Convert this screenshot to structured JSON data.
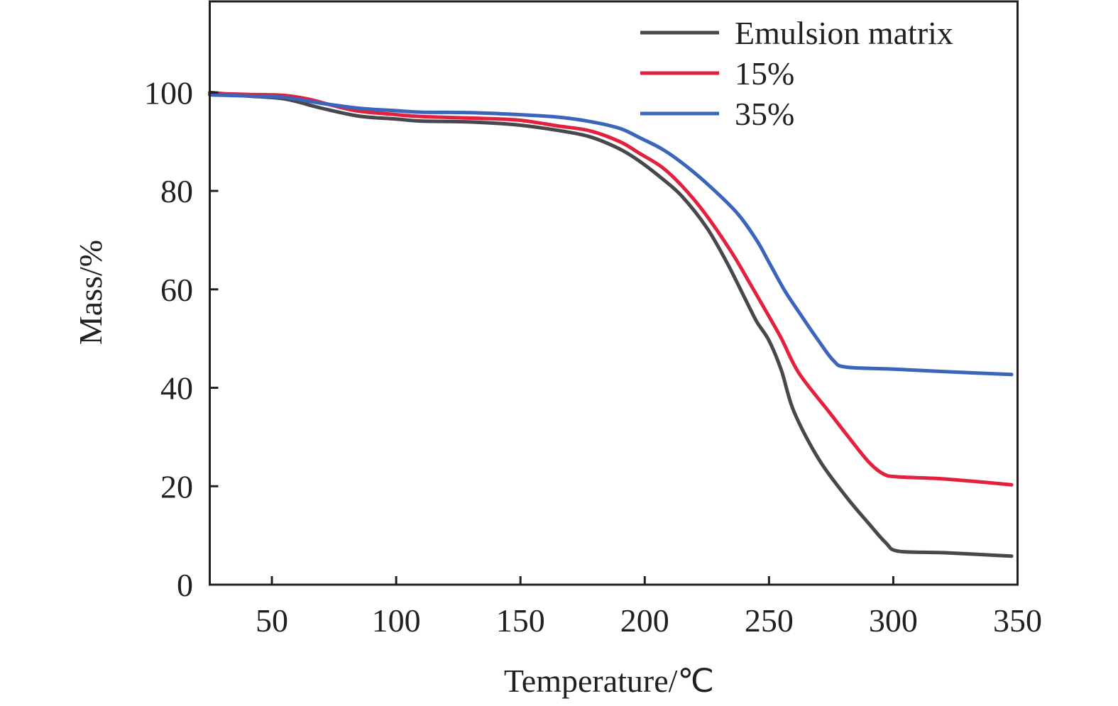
{
  "chart_data": {
    "type": "line",
    "title": "",
    "xlabel": "Temperature/℃",
    "ylabel": "Mass/%",
    "xlim": [
      25,
      350
    ],
    "ylim": [
      0,
      118.5
    ],
    "xticks": [
      50,
      100,
      150,
      200,
      250,
      300,
      350
    ],
    "yticks": [
      0,
      20,
      40,
      60,
      80,
      100
    ],
    "grid": false,
    "legend_position": "top-right",
    "series": [
      {
        "name": "Emulsion matrix",
        "color": "#47474d",
        "points": [
          [
            25,
            100
          ],
          [
            40,
            99.3
          ],
          [
            55,
            98.7
          ],
          [
            70,
            96.8
          ],
          [
            85,
            95.2
          ],
          [
            100,
            94.6
          ],
          [
            110,
            94.2
          ],
          [
            130,
            94.0
          ],
          [
            149,
            93.4
          ],
          [
            165,
            92.3
          ],
          [
            178,
            91.0
          ],
          [
            190,
            88.5
          ],
          [
            198,
            86.0
          ],
          [
            207,
            82.5
          ],
          [
            215,
            78.9
          ],
          [
            225,
            72.5
          ],
          [
            233,
            65.5
          ],
          [
            240,
            58.5
          ],
          [
            245,
            53.5
          ],
          [
            250,
            49.6
          ],
          [
            255,
            43.5
          ],
          [
            260,
            35.2
          ],
          [
            270,
            25.5
          ],
          [
            281,
            17.9
          ],
          [
            290,
            12.5
          ],
          [
            297,
            8.5
          ],
          [
            302,
            6.8
          ],
          [
            320,
            6.5
          ],
          [
            347.6,
            5.8
          ]
        ]
      },
      {
        "name": "15%",
        "color": "#e2213e",
        "points": [
          [
            25,
            99.8
          ],
          [
            40,
            99.6
          ],
          [
            55,
            99.4
          ],
          [
            65,
            98.6
          ],
          [
            75,
            97.3
          ],
          [
            85,
            96.2
          ],
          [
            100,
            95.5
          ],
          [
            110,
            95.1
          ],
          [
            130,
            94.8
          ],
          [
            149,
            94.4
          ],
          [
            165,
            93.2
          ],
          [
            178,
            92.2
          ],
          [
            190,
            90.0
          ],
          [
            198,
            87.6
          ],
          [
            207,
            84.8
          ],
          [
            215,
            81.0
          ],
          [
            224,
            75.6
          ],
          [
            235,
            67.5
          ],
          [
            242,
            61.5
          ],
          [
            250,
            54.5
          ],
          [
            255,
            50.0
          ],
          [
            262,
            43.0
          ],
          [
            274,
            35.2
          ],
          [
            282,
            30.0
          ],
          [
            290,
            25.0
          ],
          [
            296,
            22.5
          ],
          [
            302,
            21.9
          ],
          [
            320,
            21.5
          ],
          [
            347.6,
            20.3
          ]
        ]
      },
      {
        "name": "35%",
        "color": "#3b64bb",
        "points": [
          [
            25,
            99.5
          ],
          [
            40,
            99.3
          ],
          [
            55,
            99.0
          ],
          [
            70,
            97.8
          ],
          [
            85,
            96.8
          ],
          [
            100,
            96.3
          ],
          [
            110,
            96.0
          ],
          [
            130,
            95.9
          ],
          [
            149,
            95.5
          ],
          [
            165,
            95.0
          ],
          [
            178,
            94.1
          ],
          [
            190,
            92.7
          ],
          [
            198,
            90.8
          ],
          [
            207,
            88.5
          ],
          [
            215,
            85.7
          ],
          [
            225,
            81.5
          ],
          [
            237,
            75.6
          ],
          [
            245,
            70.0
          ],
          [
            250,
            65.5
          ],
          [
            256,
            60.0
          ],
          [
            262,
            55.4
          ],
          [
            270,
            49.5
          ],
          [
            276,
            45.5
          ],
          [
            281,
            44.2
          ],
          [
            300,
            43.8
          ],
          [
            320,
            43.3
          ],
          [
            347.6,
            42.7
          ]
        ]
      }
    ]
  }
}
